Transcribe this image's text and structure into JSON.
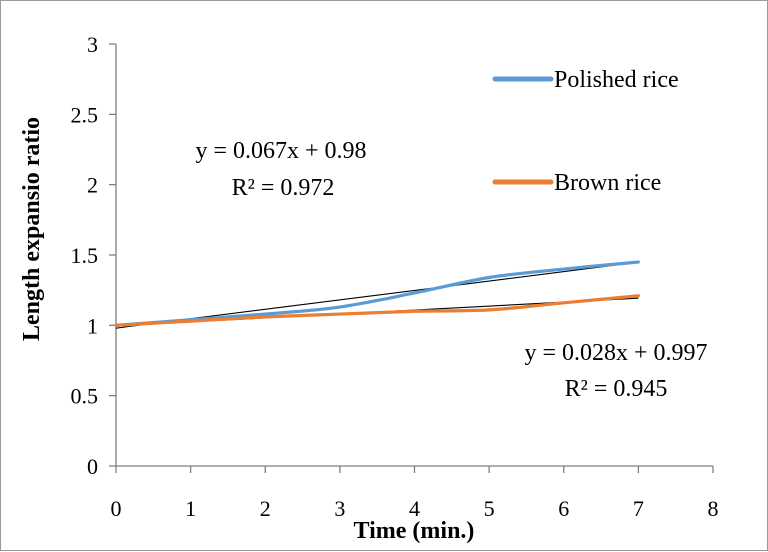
{
  "chart_data": {
    "type": "line",
    "title": "",
    "xlabel": "Time (min.)",
    "ylabel": "Length expansio ratio",
    "xlim": [
      0,
      8
    ],
    "ylim": [
      0,
      3
    ],
    "x_ticks": [
      "0",
      "1",
      "2",
      "3",
      "4",
      "5",
      "6",
      "7",
      "8"
    ],
    "y_ticks": [
      "0",
      "0.5",
      "1",
      "1.5",
      "2",
      "2.5",
      "3"
    ],
    "grid": false,
    "legend_position": "top-right",
    "series": [
      {
        "name": "Polished rice",
        "color": "#5b9bd5",
        "x": [
          0,
          1,
          2,
          3,
          4,
          5,
          6,
          7
        ],
        "y": [
          1.0,
          1.04,
          1.08,
          1.13,
          1.23,
          1.34,
          1.4,
          1.45
        ],
        "trendline": {
          "slope": 0.067,
          "intercept": 0.98,
          "equation": "y = 0.067x + 0.98",
          "r2": "R² = 0.972"
        }
      },
      {
        "name": "Brown rice",
        "color": "#ed7d31",
        "x": [
          0,
          1,
          2,
          3,
          4,
          5,
          6,
          7
        ],
        "y": [
          1.0,
          1.03,
          1.06,
          1.08,
          1.1,
          1.11,
          1.16,
          1.21
        ],
        "trendline": {
          "slope": 0.028,
          "intercept": 0.997,
          "equation": "y = 0.028x + 0.997",
          "r2": "R² = 0.945"
        }
      }
    ]
  }
}
